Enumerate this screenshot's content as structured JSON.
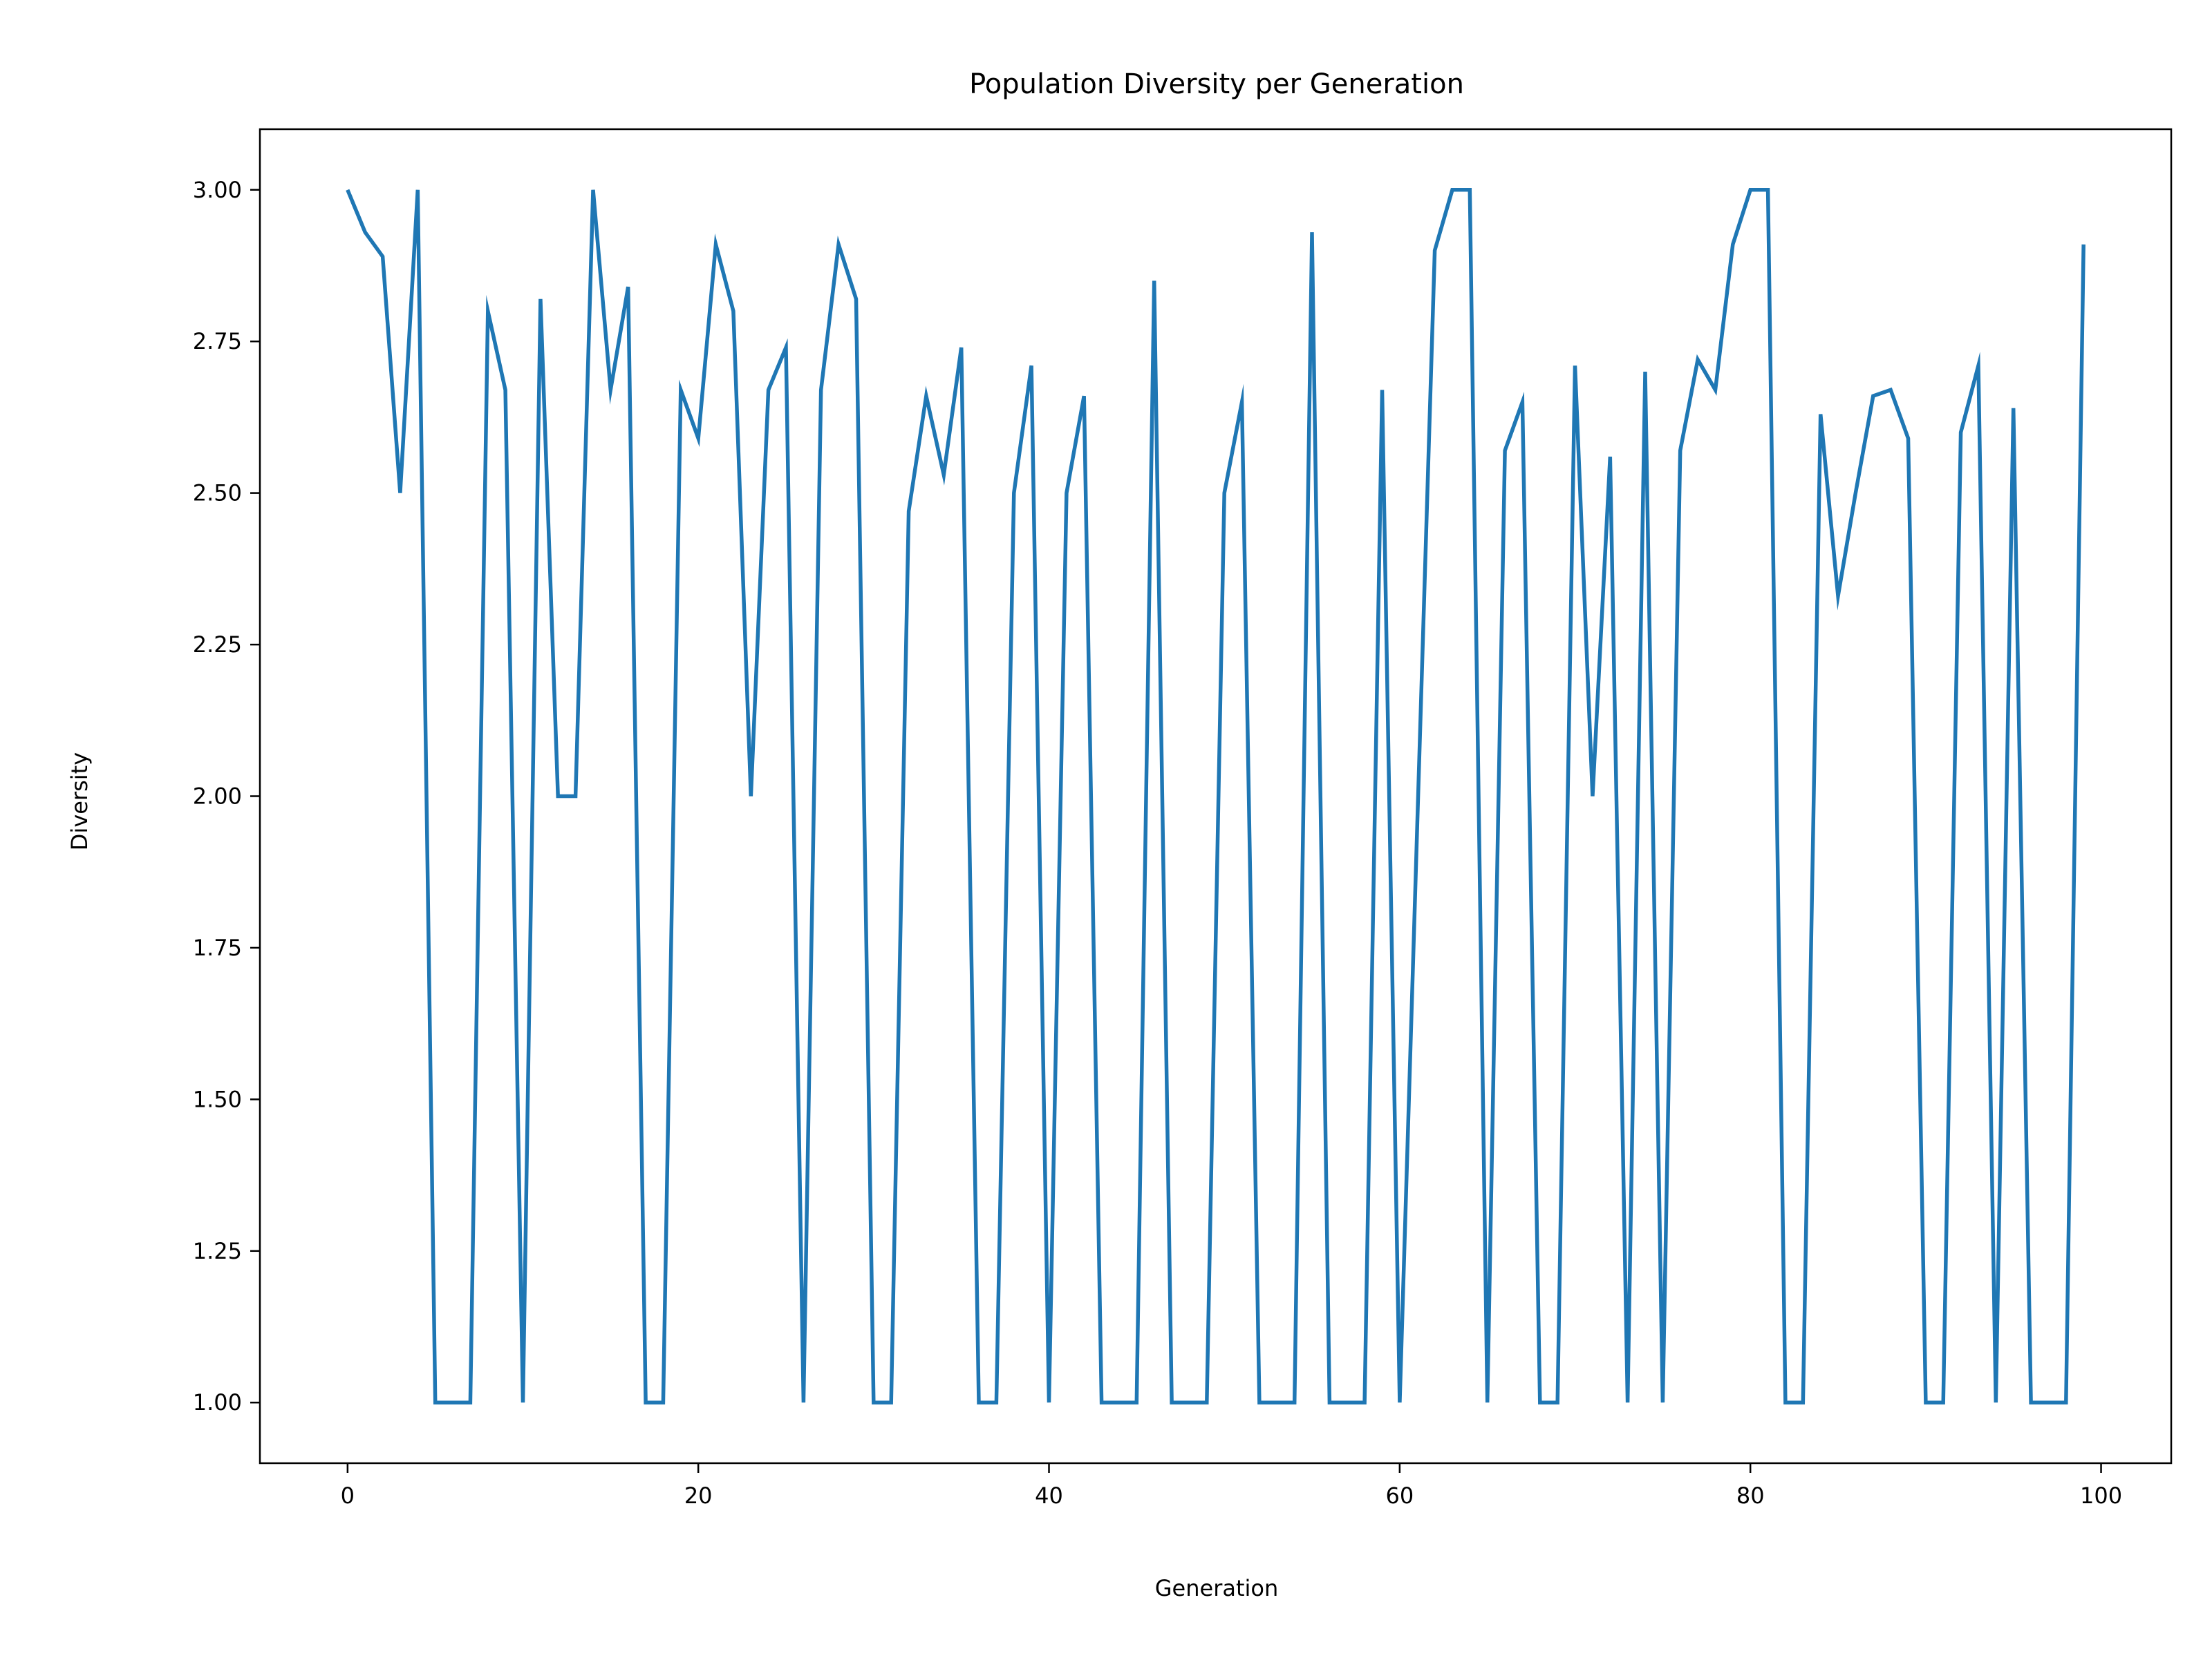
{
  "chart_data": {
    "type": "line",
    "title": "Population Diversity per Generation",
    "xlabel": "Generation",
    "ylabel": "Diversity",
    "xlim": [
      -5,
      104
    ],
    "ylim": [
      0.9,
      3.1
    ],
    "xticks": [
      0,
      20,
      40,
      60,
      80,
      100
    ],
    "xtick_labels": [
      "0",
      "20",
      "40",
      "60",
      "80",
      "100"
    ],
    "yticks": [
      1.0,
      1.25,
      1.5,
      1.75,
      2.0,
      2.25,
      2.5,
      2.75,
      3.0
    ],
    "ytick_labels": [
      "1.00",
      "1.25",
      "1.50",
      "1.75",
      "2.00",
      "2.25",
      "2.50",
      "2.75",
      "3.00"
    ],
    "grid": false,
    "series": [
      {
        "color": "#1f77b4",
        "x": [
          0,
          1,
          2,
          3,
          4,
          5,
          6,
          7,
          8,
          9,
          10,
          11,
          12,
          13,
          14,
          15,
          16,
          17,
          18,
          19,
          20,
          21,
          22,
          23,
          24,
          25,
          26,
          27,
          28,
          29,
          30,
          31,
          32,
          33,
          34,
          35,
          36,
          37,
          38,
          39,
          40,
          41,
          42,
          43,
          44,
          45,
          46,
          47,
          48,
          49,
          50,
          51,
          52,
          53,
          54,
          55,
          56,
          57,
          58,
          59,
          60,
          61,
          62,
          63,
          64,
          65,
          66,
          67,
          68,
          69,
          70,
          71,
          72,
          73,
          74,
          75,
          76,
          77,
          78,
          79,
          80,
          81,
          82,
          83,
          84,
          85,
          86,
          87,
          88,
          89,
          90,
          91,
          92,
          93,
          94,
          95,
          96,
          97,
          98,
          99
        ],
        "y": [
          3.0,
          2.93,
          2.89,
          2.5,
          3.0,
          1.0,
          1.0,
          1.0,
          2.8,
          2.67,
          1.0,
          2.82,
          2.0,
          2.0,
          3.0,
          2.67,
          2.84,
          1.0,
          1.0,
          2.67,
          2.59,
          2.91,
          2.8,
          2.0,
          2.67,
          2.74,
          1.0,
          2.67,
          2.91,
          2.82,
          1.0,
          1.0,
          2.47,
          2.66,
          2.53,
          2.74,
          1.0,
          1.0,
          2.5,
          2.71,
          1.0,
          2.5,
          2.66,
          1.0,
          1.0,
          1.0,
          2.85,
          1.0,
          1.0,
          1.0,
          2.5,
          2.65,
          1.0,
          1.0,
          1.0,
          2.93,
          1.0,
          1.0,
          1.0,
          2.67,
          1.0,
          1.95,
          2.9,
          3.0,
          3.0,
          1.0,
          2.57,
          2.65,
          1.0,
          1.0,
          2.71,
          2.0,
          2.56,
          1.0,
          2.7,
          1.0,
          2.57,
          2.72,
          2.67,
          2.91,
          3.0,
          3.0,
          1.0,
          1.0,
          2.63,
          2.33,
          2.5,
          2.66,
          2.67,
          2.59,
          1.0,
          1.0,
          2.6,
          2.71,
          1.0,
          2.64,
          1.0,
          1.0,
          1.0,
          2.91
        ]
      }
    ]
  }
}
